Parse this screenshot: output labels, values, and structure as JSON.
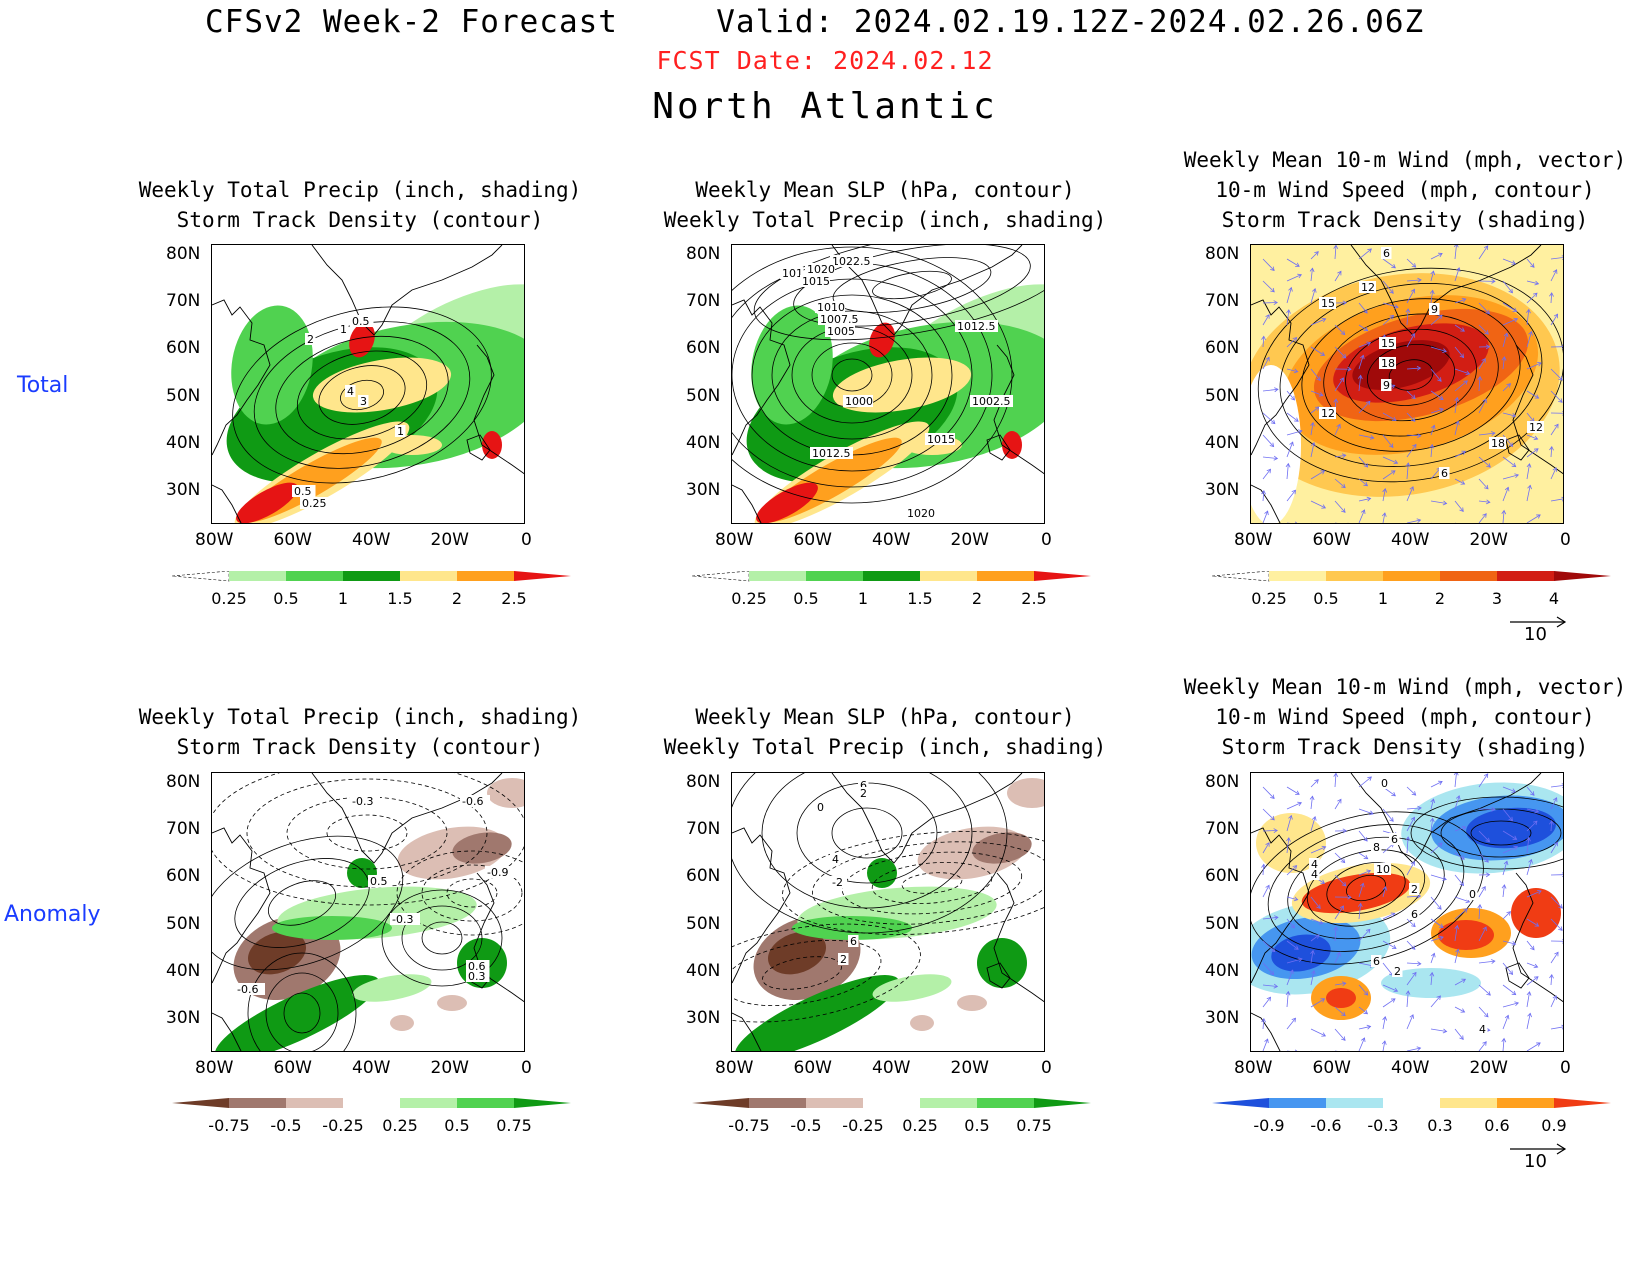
{
  "header": {
    "title_line": "CFSv2 Week-2 Forecast     Valid: 2024.02.19.12Z-2024.02.26.06Z",
    "fcst_date": "FCST Date: 2024.02.12",
    "region": "North Atlantic"
  },
  "rows": {
    "total": "Total",
    "anomaly": "Anomaly"
  },
  "lat_ticks": [
    "80N",
    "70N",
    "60N",
    "50N",
    "40N",
    "30N"
  ],
  "lon_ticks": [
    "80W",
    "60W",
    "40W",
    "20W",
    "0"
  ],
  "panels": {
    "p11": {
      "title": "Weekly Total Precip (inch, shading)\nStorm Track Density (contour)"
    },
    "p12": {
      "title": "Weekly Mean SLP (hPa, contour)\nWeekly Total Precip (inch, shading)"
    },
    "p13": {
      "title": "Weekly Mean 10-m Wind (mph, vector)\n10-m Wind Speed (mph, contour)\nStorm Track Density (shading)"
    },
    "p21": {
      "title": "Weekly Total Precip (inch, shading)\nStorm Track Density (contour)"
    },
    "p22": {
      "title": "Weekly Mean SLP (hPa, contour)\nWeekly Total Precip (inch, shading)"
    },
    "p23": {
      "title": "Weekly Mean 10-m Wind (mph, vector)\n10-m Wind Speed (mph, contour)\nStorm Track Density (shading)"
    }
  },
  "contour_labels": {
    "p11": [
      "0.5",
      "2",
      "1",
      "4",
      "3",
      "1",
      "0.5",
      "0.25"
    ],
    "p12": [
      "1022.5",
      "1020",
      "101",
      "1015",
      "1010",
      "1007.5",
      "1005",
      "1012.5",
      "1000",
      "1002.5",
      "1015",
      "1012.5",
      "1020"
    ],
    "p13": [
      "6",
      "12",
      "15",
      "9",
      "15",
      "18",
      "9",
      "12",
      "18",
      "12",
      "6"
    ],
    "p21": [
      "-0.3",
      "-0.6",
      "-0.9",
      "0.5",
      "-0.3",
      "0.6",
      "0.3",
      "-0.6"
    ],
    "p22": [
      "6",
      "2",
      "0",
      "4",
      "-2",
      "6",
      "2"
    ],
    "p23": [
      "0",
      "6",
      "8",
      "4",
      "4",
      "10",
      "2",
      "0",
      "6",
      "6",
      "2",
      "4"
    ]
  },
  "colorbars": {
    "precip_total": {
      "labels": [
        "0.25",
        "0.5",
        "1",
        "1.5",
        "2",
        "2.5"
      ],
      "colors": [
        "#ffffff",
        "#b4f0a8",
        "#50d250",
        "#0f9a14",
        "#ffe68c",
        "#ffa01e",
        "#e61414"
      ]
    },
    "storm_total": {
      "labels": [
        "0.25",
        "0.5",
        "1",
        "2",
        "3",
        "4"
      ],
      "colors": [
        "#ffffff",
        "#fff0a0",
        "#ffc850",
        "#ffa01e",
        "#f06414",
        "#d21e14",
        "#a00a0a"
      ]
    },
    "precip_anom": {
      "labels": [
        "-0.75",
        "-0.5",
        "-0.25",
        "0.25",
        "0.5",
        "0.75"
      ],
      "colors": [
        "#6e3c28",
        "#a0786e",
        "#dcbeb4",
        "#ffffff",
        "#b4f0a8",
        "#50d250",
        "#0f9a14"
      ]
    },
    "storm_anom": {
      "labels": [
        "-0.9",
        "-0.6",
        "-0.3",
        "0.3",
        "0.6",
        "0.9"
      ],
      "colors": [
        "#1e50dc",
        "#4696f0",
        "#aae6f0",
        "#ffffff",
        "#ffe68c",
        "#ffa01e",
        "#f03c14"
      ]
    }
  },
  "vector_ref": "10",
  "colors": {
    "vector": "#6f6ff2",
    "title_red": "#ff2020",
    "row_label": "#1a3cff"
  }
}
